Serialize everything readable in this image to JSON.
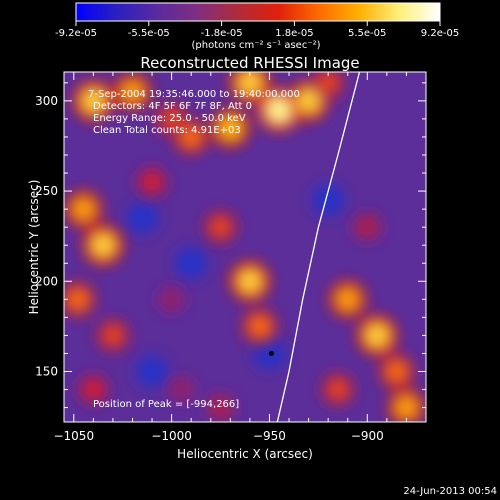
{
  "colorbar": {
    "ticks": [
      "-9.2e-05",
      "-5.5e-05",
      "-1.8e-05",
      "1.8e-05",
      "5.5e-05",
      "9.2e-05"
    ],
    "unit_label": "(photons cm⁻² s⁻¹ asec⁻²)",
    "colors": [
      "#0000ff",
      "#2b20c0",
      "#5a2aa0",
      "#7f2f80",
      "#b02c3a",
      "#e0200a",
      "#ff6a00",
      "#ffb000",
      "#fff07a",
      "#ffffff"
    ]
  },
  "chart_data": {
    "type": "heatmap",
    "title": "Reconstructed RHESSI Image",
    "xlabel": "Heliocentric X (arcsec)",
    "ylabel": "Heliocentric Y (arcsec)",
    "xlim": [
      -1055,
      -870
    ],
    "ylim": [
      122,
      316
    ],
    "x_ticks": [
      -1050,
      -1000,
      -950,
      -900
    ],
    "y_ticks": [
      150,
      200,
      250,
      300
    ],
    "annotations": [
      "7-Sep-2004 19:35:46.000 to 19:40:00.000",
      "Detectors: 4F 5F 6F 7F 8F, Att 0",
      "Energy Range: 25.0 - 50.0 keV",
      "Clean    Total counts: 4.91E+03"
    ],
    "peak_label": "Position of Peak = [-994,266]",
    "peak": {
      "x": -994,
      "y": 266
    },
    "marker": {
      "x": -949,
      "y": 160
    },
    "limb": [
      [
        -946,
        122
      ],
      [
        -940,
        150
      ],
      [
        -933,
        190
      ],
      [
        -925,
        230
      ],
      [
        -915,
        270
      ],
      [
        -904,
        316
      ]
    ],
    "blobs": [
      {
        "x": -1040,
        "y": 300,
        "v": 0.9
      },
      {
        "x": -1020,
        "y": 305,
        "v": 0.8
      },
      {
        "x": -1000,
        "y": 290,
        "v": 0.6
      },
      {
        "x": -990,
        "y": 280,
        "v": 0.7
      },
      {
        "x": -970,
        "y": 285,
        "v": 0.85
      },
      {
        "x": -960,
        "y": 310,
        "v": 0.9
      },
      {
        "x": -945,
        "y": 295,
        "v": 1.0
      },
      {
        "x": -930,
        "y": 300,
        "v": 0.9
      },
      {
        "x": -920,
        "y": 310,
        "v": 0.6
      },
      {
        "x": -1045,
        "y": 240,
        "v": 0.8
      },
      {
        "x": -1035,
        "y": 220,
        "v": 0.9
      },
      {
        "x": -1048,
        "y": 190,
        "v": 0.7
      },
      {
        "x": -1030,
        "y": 170,
        "v": 0.6
      },
      {
        "x": -1040,
        "y": 140,
        "v": 0.5
      },
      {
        "x": -1010,
        "y": 255,
        "v": 0.5
      },
      {
        "x": -975,
        "y": 230,
        "v": 0.6
      },
      {
        "x": -960,
        "y": 200,
        "v": 0.9
      },
      {
        "x": -955,
        "y": 175,
        "v": 0.7
      },
      {
        "x": -1000,
        "y": 190,
        "v": 0.3
      },
      {
        "x": -910,
        "y": 190,
        "v": 0.8
      },
      {
        "x": -895,
        "y": 170,
        "v": 0.9
      },
      {
        "x": -885,
        "y": 150,
        "v": 0.7
      },
      {
        "x": -915,
        "y": 140,
        "v": 0.6
      },
      {
        "x": -880,
        "y": 130,
        "v": 0.8
      },
      {
        "x": -900,
        "y": 230,
        "v": 0.4
      },
      {
        "x": -995,
        "y": 140,
        "v": 0.3
      },
      {
        "x": -975,
        "y": 130,
        "v": 0.4
      }
    ],
    "lows": [
      {
        "x": -1015,
        "y": 235
      },
      {
        "x": -990,
        "y": 210
      },
      {
        "x": -950,
        "y": 160
      },
      {
        "x": -920,
        "y": 245
      },
      {
        "x": -1010,
        "y": 150
      }
    ]
  },
  "footer": {
    "timestamp": "24-Jun-2013 00:54"
  }
}
